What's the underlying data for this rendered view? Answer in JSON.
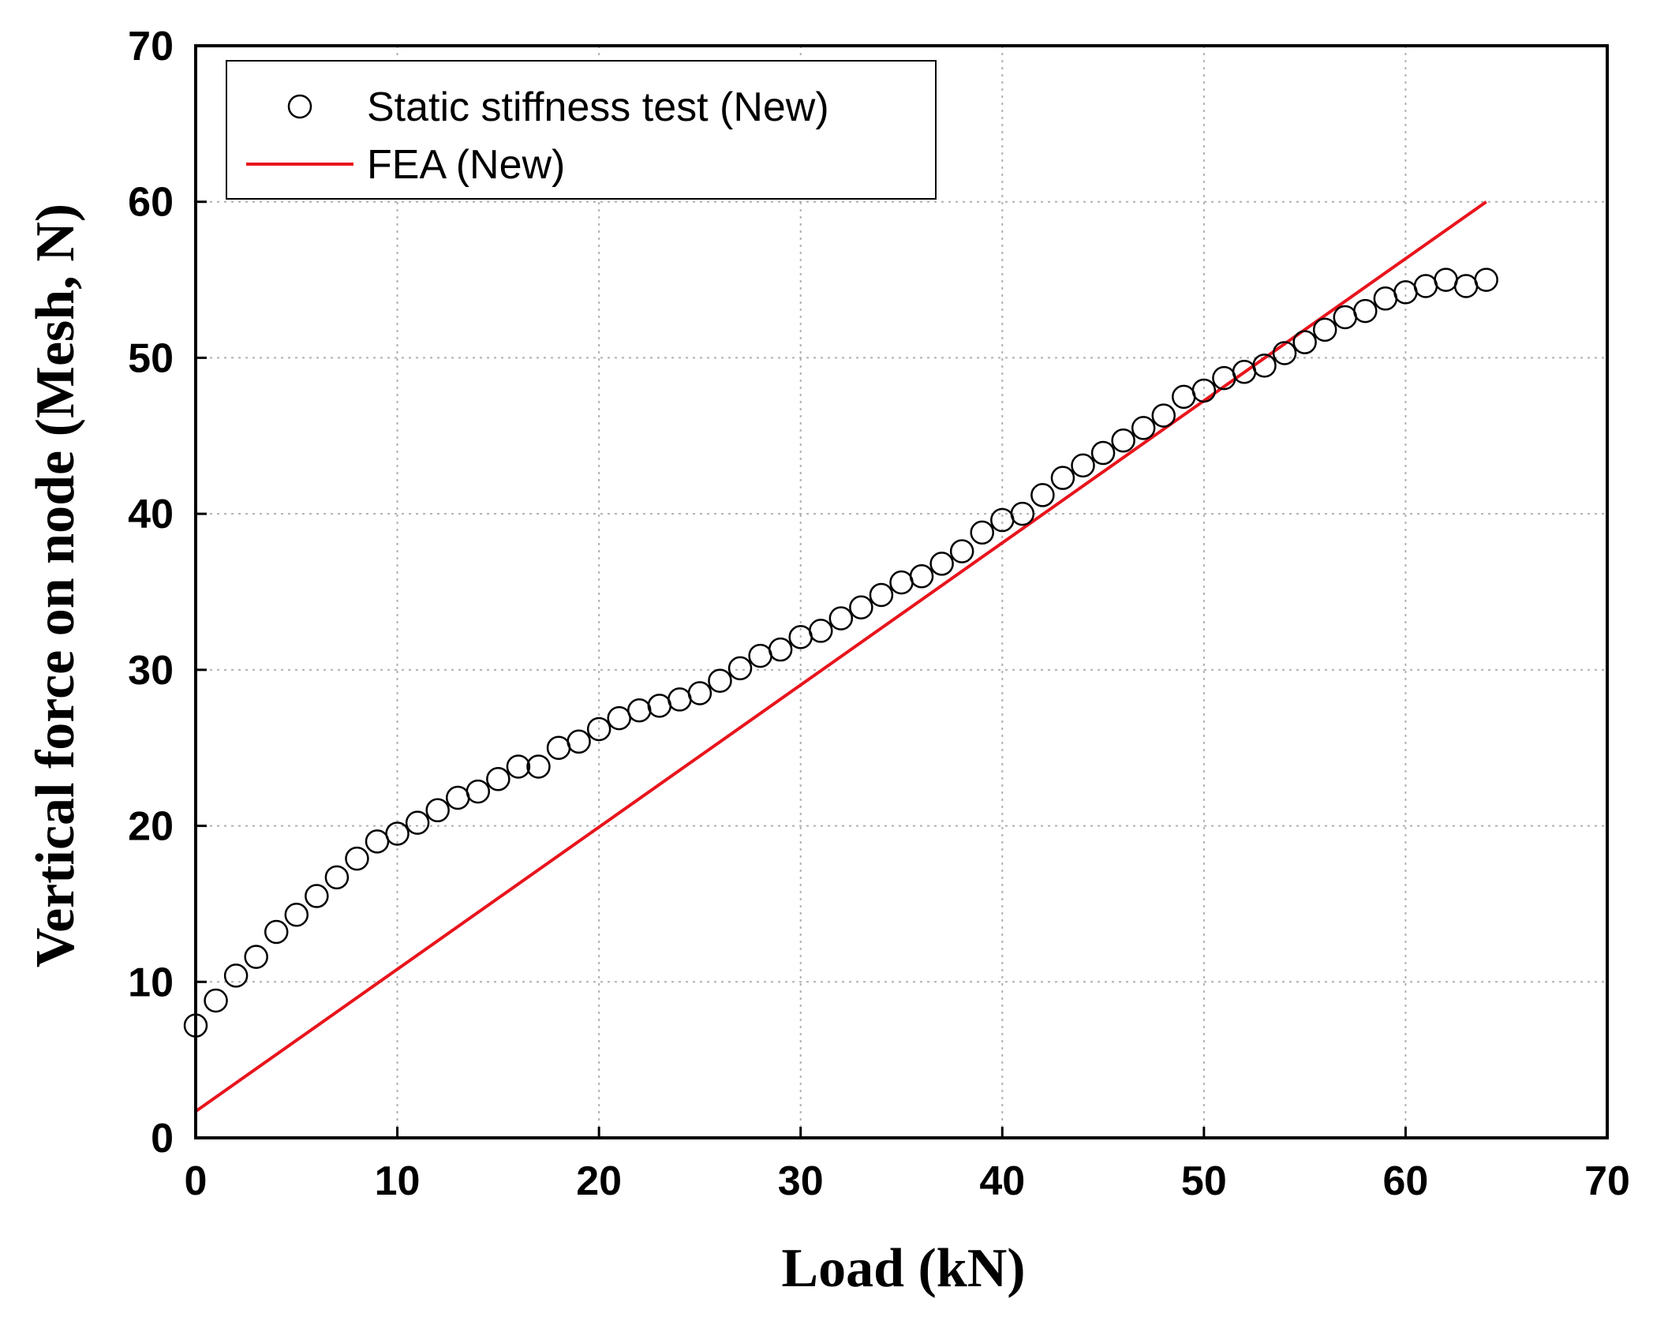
{
  "chart_data": {
    "type": "scatter",
    "title": "",
    "xlabel": "Load (kN)",
    "ylabel": "Vertical force on node (Mesh, N)",
    "xlim": [
      0,
      70
    ],
    "ylim": [
      0,
      70
    ],
    "xticks": [
      "0",
      "10",
      "20",
      "30",
      "40",
      "50",
      "60",
      "70"
    ],
    "yticks": [
      "0",
      "10",
      "20",
      "30",
      "40",
      "50",
      "60",
      "70"
    ],
    "grid": true,
    "legend_position": "top-left",
    "series": [
      {
        "name": "Static stiffness test (New)",
        "kind": "scatter",
        "marker": "open-circle",
        "color": "#000000",
        "x": [
          0,
          1,
          2,
          3,
          4,
          5,
          6,
          7,
          8,
          9,
          10,
          11,
          12,
          13,
          14,
          15,
          16,
          17,
          18,
          19,
          20,
          21,
          22,
          23,
          24,
          25,
          26,
          27,
          28,
          29,
          30,
          31,
          32,
          33,
          34,
          35,
          36,
          37,
          38,
          39,
          40,
          41,
          42,
          43,
          44,
          45,
          46,
          47,
          48,
          49,
          50,
          51,
          52,
          53,
          54,
          55,
          56,
          57,
          58,
          59,
          60,
          61,
          62,
          63,
          64
        ],
        "y": [
          7.2,
          8.8,
          10.4,
          11.6,
          13.2,
          14.3,
          15.5,
          16.7,
          17.9,
          19.0,
          19.5,
          20.2,
          21.0,
          21.8,
          22.2,
          23.0,
          23.8,
          23.8,
          25.0,
          25.4,
          26.2,
          26.9,
          27.4,
          27.7,
          28.1,
          28.5,
          29.3,
          30.1,
          30.9,
          31.3,
          32.1,
          32.5,
          33.3,
          34.0,
          34.8,
          35.6,
          36.0,
          36.8,
          37.6,
          38.8,
          39.6,
          40.0,
          41.2,
          42.3,
          43.1,
          43.9,
          44.7,
          45.5,
          46.3,
          47.5,
          47.9,
          48.7,
          49.1,
          49.5,
          50.3,
          51.0,
          51.8,
          52.6,
          53.0,
          53.8,
          54.2,
          54.6,
          55.0,
          54.6,
          55.0
        ]
      },
      {
        "name": "FEA (New)",
        "kind": "line",
        "color": "#e8141c",
        "x": [
          0,
          64
        ],
        "y": [
          1.7,
          60.0
        ]
      }
    ]
  }
}
